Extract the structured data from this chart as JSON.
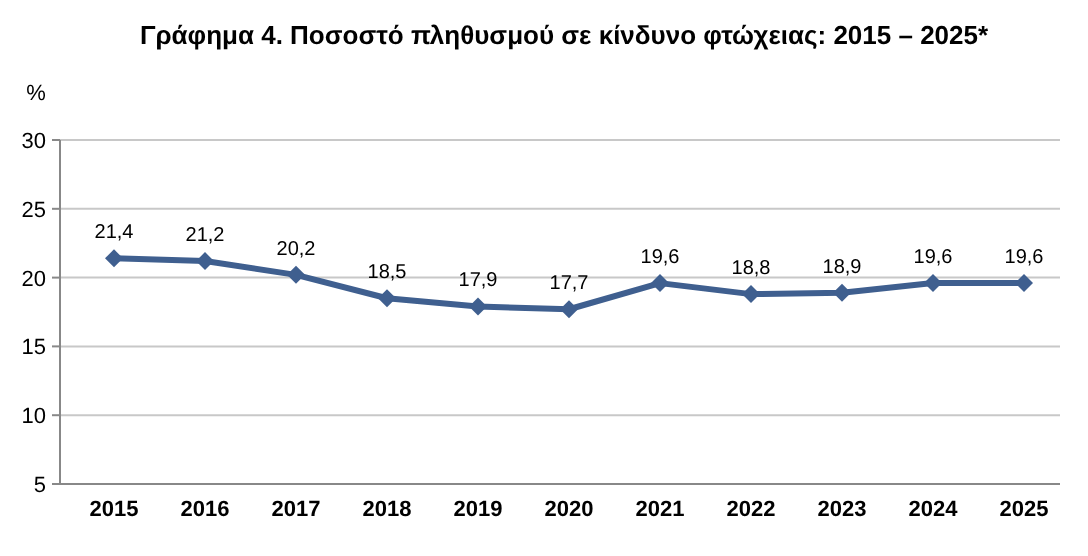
{
  "chart_data": {
    "type": "line",
    "title": "Γράφημα 4. Ποσοστό πληθυσμού σε κίνδυνο φτώχειας: 2015 – 2025*",
    "ylabel": "%",
    "categories": [
      "2015",
      "2016",
      "2017",
      "2018",
      "2019",
      "2020",
      "2021",
      "2022",
      "2023",
      "2024",
      "2025"
    ],
    "series": [
      {
        "color": "#3f5f8f",
        "values": [
          21.4,
          21.2,
          20.2,
          18.5,
          17.9,
          17.7,
          19.6,
          18.8,
          18.9,
          19.6,
          19.6
        ],
        "value_labels": [
          "21,4",
          "21,2",
          "20,2",
          "18,5",
          "17,9",
          "17,7",
          "19,6",
          "18,8",
          "18,9",
          "19,6",
          "19,6"
        ]
      }
    ],
    "ylim": [
      5,
      30
    ],
    "yticks": [
      5,
      10,
      15,
      20,
      25,
      30
    ],
    "grid": "y",
    "marker": "diamond",
    "line_style": "solid"
  }
}
